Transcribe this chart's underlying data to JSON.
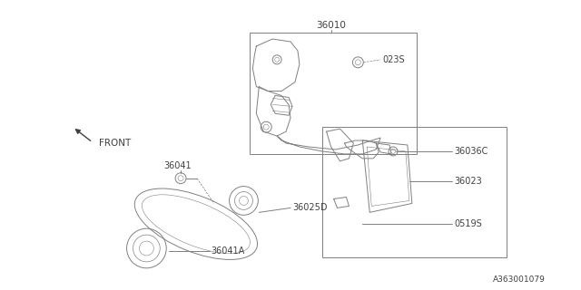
{
  "bg_color": "#ffffff",
  "fig_width": 6.4,
  "fig_height": 3.2,
  "dpi": 100,
  "labels": {
    "part_36010": "36010",
    "label_023S": "023S",
    "label_36036C": "36036C",
    "label_36023": "36023",
    "label_0519S": "0519S",
    "label_36041": "36041",
    "label_36025D": "36025D",
    "label_36041A": "36041A",
    "label_front": "FRONT",
    "catalog": "A363001079"
  },
  "colors": {
    "line": "#808080",
    "text": "#404040",
    "dark": "#505050"
  }
}
